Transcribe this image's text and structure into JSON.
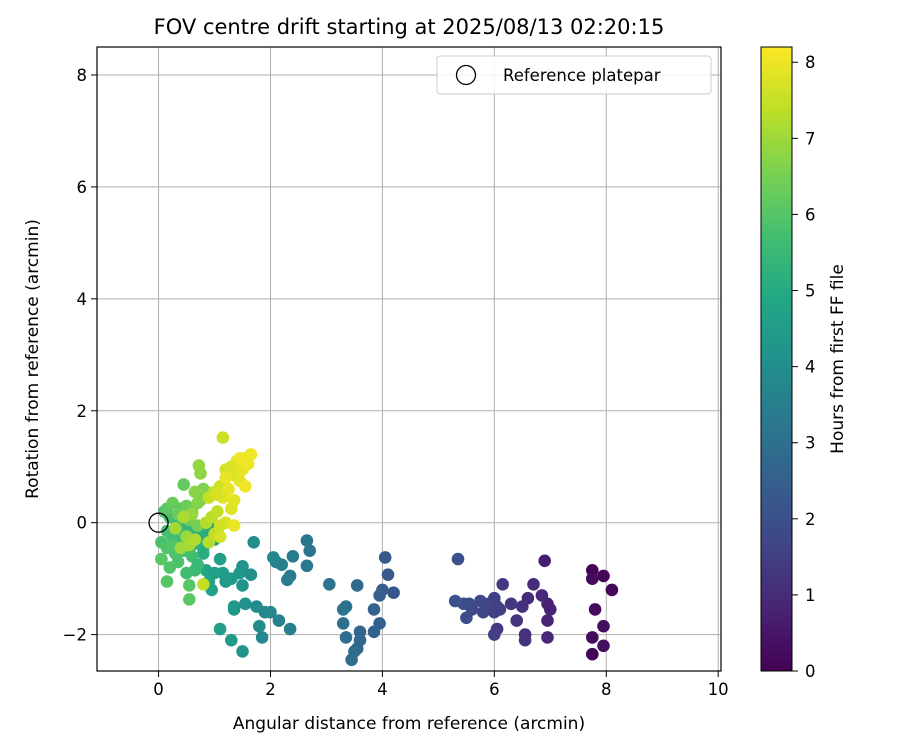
{
  "chart_data": {
    "type": "scatter",
    "title": "FOV centre drift starting at 2025/08/13 02:20:15",
    "xlabel": "Angular distance from reference (arcmin)",
    "ylabel": "Rotation from reference (arcmin)",
    "xlim": [
      -1.1,
      10.05
    ],
    "ylim": [
      -2.65,
      8.5
    ],
    "xticks": [
      0,
      2,
      4,
      6,
      8,
      10
    ],
    "yticks": [
      -2,
      0,
      2,
      4,
      6,
      8
    ],
    "xtick_labels": [
      "0",
      "2",
      "4",
      "6",
      "8",
      "10"
    ],
    "ytick_labels": [
      "−2",
      "0",
      "2",
      "4",
      "6",
      "8"
    ],
    "grid": true,
    "legend": {
      "placement": "top-right",
      "entries": [
        "Reference platepar"
      ]
    },
    "reference_point": {
      "x": 0,
      "y": 0
    },
    "colorbar": {
      "label": "Hours from first FF file",
      "colormap": "viridis",
      "min": 0,
      "max": 8.2,
      "ticks": [
        0,
        1,
        2,
        3,
        4,
        5,
        6,
        7,
        8
      ],
      "tick_labels": [
        "0",
        "1",
        "2",
        "3",
        "4",
        "5",
        "6",
        "7",
        "8"
      ]
    },
    "points": [
      [
        7.75,
        -0.85,
        0.05
      ],
      [
        7.95,
        -0.95,
        0.1
      ],
      [
        8.1,
        -1.2,
        0.15
      ],
      [
        7.8,
        -1.55,
        0.2
      ],
      [
        7.75,
        -2.05,
        0.25
      ],
      [
        7.95,
        -1.85,
        0.3
      ],
      [
        7.95,
        -2.2,
        0.35
      ],
      [
        7.75,
        -2.35,
        0.1
      ],
      [
        7.75,
        -1.0,
        0.2
      ],
      [
        6.9,
        -0.68,
        0.7
      ],
      [
        6.95,
        -1.45,
        0.75
      ],
      [
        7.0,
        -1.55,
        0.8
      ],
      [
        6.95,
        -1.75,
        0.85
      ],
      [
        6.95,
        -2.05,
        0.9
      ],
      [
        6.85,
        -1.3,
        0.95
      ],
      [
        6.7,
        -1.1,
        1.0
      ],
      [
        6.6,
        -1.35,
        1.05
      ],
      [
        6.55,
        -2.0,
        1.1
      ],
      [
        6.5,
        -1.5,
        1.15
      ],
      [
        6.55,
        -2.1,
        1.2
      ],
      [
        6.4,
        -1.75,
        1.25
      ],
      [
        6.3,
        -1.45,
        1.3
      ],
      [
        6.15,
        -1.1,
        1.35
      ],
      [
        6.05,
        -1.9,
        1.4
      ],
      [
        6.0,
        -2.0,
        1.45
      ],
      [
        6.05,
        -1.5,
        1.5
      ],
      [
        6.0,
        -1.35,
        1.55
      ],
      [
        5.95,
        -1.55,
        1.6
      ],
      [
        5.9,
        -1.45,
        1.65
      ],
      [
        5.8,
        -1.6,
        1.7
      ],
      [
        5.75,
        -1.4,
        1.75
      ],
      [
        5.6,
        -1.55,
        1.8
      ],
      [
        5.55,
        -1.45,
        1.85
      ],
      [
        5.5,
        -1.7,
        1.9
      ],
      [
        5.45,
        -1.45,
        1.95
      ],
      [
        5.35,
        -0.65,
        2.0
      ],
      [
        5.3,
        -1.4,
        2.05
      ],
      [
        6.1,
        -1.55,
        1.6
      ],
      [
        6.0,
        -1.6,
        1.5
      ],
      [
        4.2,
        -1.25,
        2.2
      ],
      [
        4.05,
        -0.62,
        2.3
      ],
      [
        4.1,
        -0.93,
        2.35
      ],
      [
        4.0,
        -1.2,
        2.4
      ],
      [
        3.95,
        -1.3,
        2.45
      ],
      [
        3.95,
        -1.8,
        2.5
      ],
      [
        3.85,
        -1.55,
        2.55
      ],
      [
        3.85,
        -1.95,
        2.6
      ],
      [
        3.6,
        -1.95,
        2.65
      ],
      [
        3.6,
        -2.1,
        2.7
      ],
      [
        3.55,
        -1.12,
        2.75
      ],
      [
        3.55,
        -2.25,
        2.8
      ],
      [
        3.5,
        -2.3,
        2.85
      ],
      [
        3.45,
        -2.45,
        2.9
      ],
      [
        3.35,
        -2.05,
        2.95
      ],
      [
        3.3,
        -1.8,
        3.0
      ],
      [
        3.35,
        -1.5,
        3.05
      ],
      [
        3.3,
        -1.55,
        3.1
      ],
      [
        3.05,
        -1.1,
        3.15
      ],
      [
        2.7,
        -0.5,
        3.2
      ],
      [
        2.65,
        -0.32,
        3.25
      ],
      [
        2.65,
        -0.77,
        3.3
      ],
      [
        2.4,
        -0.6,
        3.35
      ],
      [
        2.35,
        -0.95,
        3.4
      ],
      [
        2.3,
        -1.02,
        3.45
      ],
      [
        2.35,
        -1.9,
        3.5
      ],
      [
        2.2,
        -0.75,
        3.55
      ],
      [
        2.15,
        -1.75,
        3.6
      ],
      [
        2.1,
        -0.7,
        3.65
      ],
      [
        2.05,
        -0.62,
        3.7
      ],
      [
        2.0,
        -1.6,
        3.75
      ],
      [
        1.9,
        -1.6,
        3.8
      ],
      [
        1.85,
        -2.05,
        3.85
      ],
      [
        1.8,
        -1.85,
        3.9
      ],
      [
        1.75,
        -1.5,
        3.95
      ],
      [
        1.7,
        -0.35,
        4.0
      ],
      [
        1.65,
        -0.93,
        4.05
      ],
      [
        1.55,
        -1.45,
        4.1
      ],
      [
        1.5,
        -0.78,
        4.15
      ],
      [
        1.5,
        -2.3,
        4.2
      ],
      [
        1.5,
        -1.12,
        4.25
      ],
      [
        1.45,
        -0.9,
        4.3
      ],
      [
        1.35,
        -1.5,
        4.35
      ],
      [
        1.3,
        -1.0,
        4.4
      ],
      [
        1.3,
        -2.1,
        4.45
      ],
      [
        1.2,
        -1.05,
        4.5
      ],
      [
        1.1,
        -1.9,
        4.55
      ],
      [
        1.1,
        -0.65,
        4.6
      ],
      [
        1.0,
        -0.3,
        4.65
      ],
      [
        0.95,
        -1.2,
        4.7
      ],
      [
        0.9,
        -1.05,
        4.75
      ],
      [
        0.85,
        -0.85,
        4.8
      ],
      [
        0.8,
        -0.45,
        4.85
      ],
      [
        1.35,
        -1.55,
        4.4
      ],
      [
        1.15,
        -0.9,
        4.5
      ],
      [
        1.0,
        -0.9,
        4.6
      ],
      [
        0.95,
        -0.15,
        4.9
      ],
      [
        0.9,
        -0.05,
        5.0
      ],
      [
        0.85,
        -0.3,
        5.05
      ],
      [
        0.8,
        -0.55,
        5.1
      ],
      [
        0.75,
        -0.15,
        5.15
      ],
      [
        0.7,
        -0.35,
        5.2
      ],
      [
        0.65,
        -0.1,
        5.25
      ],
      [
        0.6,
        -0.4,
        5.3
      ],
      [
        0.55,
        -0.2,
        5.35
      ],
      [
        0.5,
        -0.05,
        5.4
      ],
      [
        0.45,
        -0.3,
        5.45
      ],
      [
        0.4,
        -0.45,
        5.5
      ],
      [
        0.35,
        -0.1,
        5.55
      ],
      [
        0.3,
        0.05,
        5.6
      ],
      [
        0.25,
        -0.25,
        5.65
      ],
      [
        0.2,
        0.1,
        5.7
      ],
      [
        0.15,
        -0.15,
        5.75
      ],
      [
        0.1,
        0.2,
        5.8
      ],
      [
        0.05,
        -0.35,
        5.85
      ],
      [
        0.15,
        -0.45,
        5.9
      ],
      [
        0.2,
        -0.8,
        5.95
      ],
      [
        0.15,
        -1.05,
        6.0
      ],
      [
        0.05,
        -0.65,
        6.05
      ],
      [
        0.55,
        -1.12,
        6.05
      ],
      [
        0.55,
        -1.37,
        6.1
      ],
      [
        0.4,
        0.25,
        6.0
      ],
      [
        0.3,
        -0.55,
        5.9
      ],
      [
        0.45,
        -0.5,
        5.8
      ],
      [
        0.6,
        -0.6,
        5.7
      ],
      [
        0.65,
        -0.85,
        5.6
      ],
      [
        0.7,
        -0.75,
        5.5
      ],
      [
        0.5,
        -0.9,
        5.65
      ],
      [
        0.35,
        -0.7,
        5.85
      ],
      [
        0.25,
        -0.4,
        5.95
      ],
      [
        0.15,
        0.25,
        6.1
      ],
      [
        0.45,
        0.68,
        6.2
      ],
      [
        0.25,
        0.35,
        6.25
      ],
      [
        0.35,
        0.15,
        6.3
      ],
      [
        0.5,
        0.3,
        6.35
      ],
      [
        0.55,
        0.05,
        6.4
      ],
      [
        0.6,
        0.2,
        6.45
      ],
      [
        0.7,
        -0.05,
        6.5
      ],
      [
        0.75,
        0.4,
        6.55
      ],
      [
        0.8,
        0.6,
        6.6
      ],
      [
        0.85,
        0.55,
        6.65
      ],
      [
        0.7,
        0.35,
        6.7
      ],
      [
        0.65,
        0.55,
        6.75
      ],
      [
        0.75,
        0.88,
        6.8
      ],
      [
        0.72,
        1.02,
        6.85
      ],
      [
        0.6,
        0.15,
        6.9
      ],
      [
        0.5,
        -0.25,
        6.95
      ],
      [
        0.4,
        -0.45,
        7.0
      ],
      [
        0.3,
        -0.1,
        7.05
      ],
      [
        0.55,
        -0.4,
        7.1
      ],
      [
        0.45,
        0.1,
        7.15
      ],
      [
        0.65,
        -0.3,
        7.2
      ],
      [
        0.85,
        0.0,
        7.25
      ],
      [
        0.9,
        -0.35,
        7.3
      ],
      [
        0.95,
        0.1,
        7.35
      ],
      [
        1.0,
        -0.2,
        7.4
      ],
      [
        1.05,
        0.2,
        7.45
      ],
      [
        0.8,
        -1.1,
        7.5
      ],
      [
        0.9,
        0.45,
        7.5
      ],
      [
        1.0,
        0.55,
        7.55
      ],
      [
        1.1,
        0.65,
        7.6
      ],
      [
        1.15,
        1.52,
        7.6
      ],
      [
        1.2,
        0.95,
        7.65
      ],
      [
        1.3,
        1.0,
        7.7
      ],
      [
        1.35,
        0.85,
        7.75
      ],
      [
        1.4,
        1.1,
        7.8
      ],
      [
        1.45,
        0.75,
        7.85
      ],
      [
        1.5,
        0.95,
        7.9
      ],
      [
        1.55,
        1.15,
        7.95
      ],
      [
        1.6,
        1.05,
        8.0
      ],
      [
        1.65,
        1.22,
        8.05
      ],
      [
        1.25,
        0.6,
        7.9
      ],
      [
        1.15,
        0.45,
        7.85
      ],
      [
        1.3,
        0.25,
        7.8
      ],
      [
        1.2,
        0.0,
        7.75
      ],
      [
        1.1,
        -0.25,
        7.7
      ],
      [
        1.35,
        -0.05,
        7.95
      ],
      [
        1.05,
        0.5,
        7.7
      ],
      [
        1.45,
        1.15,
        8.05
      ],
      [
        1.35,
        0.4,
        7.85
      ],
      [
        1.55,
        0.65,
        8.0
      ],
      [
        1.2,
        0.8,
        7.95
      ],
      [
        1.1,
        -0.05,
        7.6
      ]
    ]
  }
}
